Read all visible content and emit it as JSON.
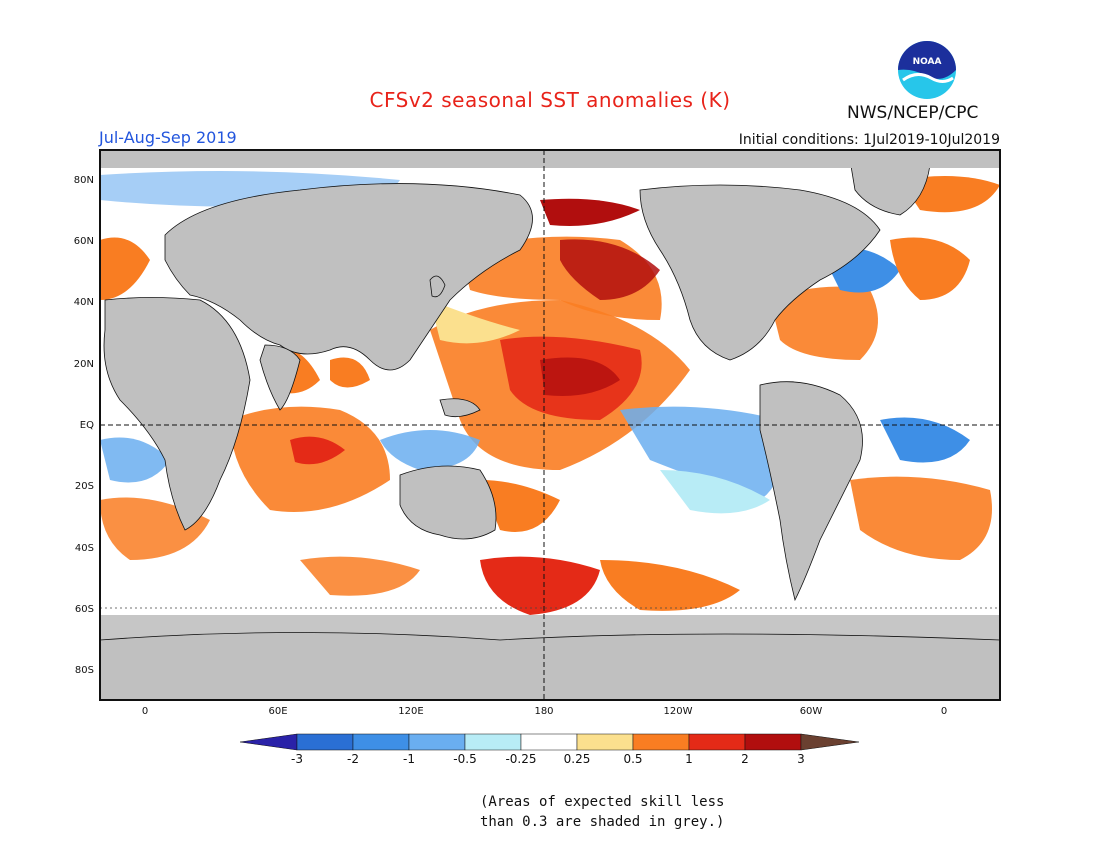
{
  "header": {
    "title": "CFSv2 seasonal SST anomalies (K)",
    "period": "Jul-Aug-Sep 2019",
    "initial_conditions": "Initial conditions: 1Jul2019-10Jul2019",
    "agency": "NWS/NCEP/CPC",
    "logo_text": "NOAA"
  },
  "map": {
    "lat_labels": [
      "80N",
      "60N",
      "40N",
      "20N",
      "EQ",
      "20S",
      "40S",
      "60S",
      "80S"
    ],
    "lon_labels": [
      "0",
      "60E",
      "120E",
      "180",
      "120W",
      "60W",
      "0"
    ],
    "land_color": "#c0c0c0",
    "ocean_color": "#ffffff"
  },
  "colorbar": {
    "labels": [
      "-3",
      "-2",
      "-1",
      "-0.5",
      "-0.25",
      "0.25",
      "0.5",
      "1",
      "2",
      "3"
    ],
    "colors": [
      "#2a22a8",
      "#2a6fd4",
      "#3e8fe6",
      "#6aaef0",
      "#b8ecf6",
      "#ffffff",
      "#fbe08e",
      "#f97d22",
      "#e42a17",
      "#b10e0e",
      "#6a4030"
    ]
  },
  "note": {
    "line1": "(Areas of expected skill less",
    "line2": "than 0.3 are shaded in grey.)"
  }
}
